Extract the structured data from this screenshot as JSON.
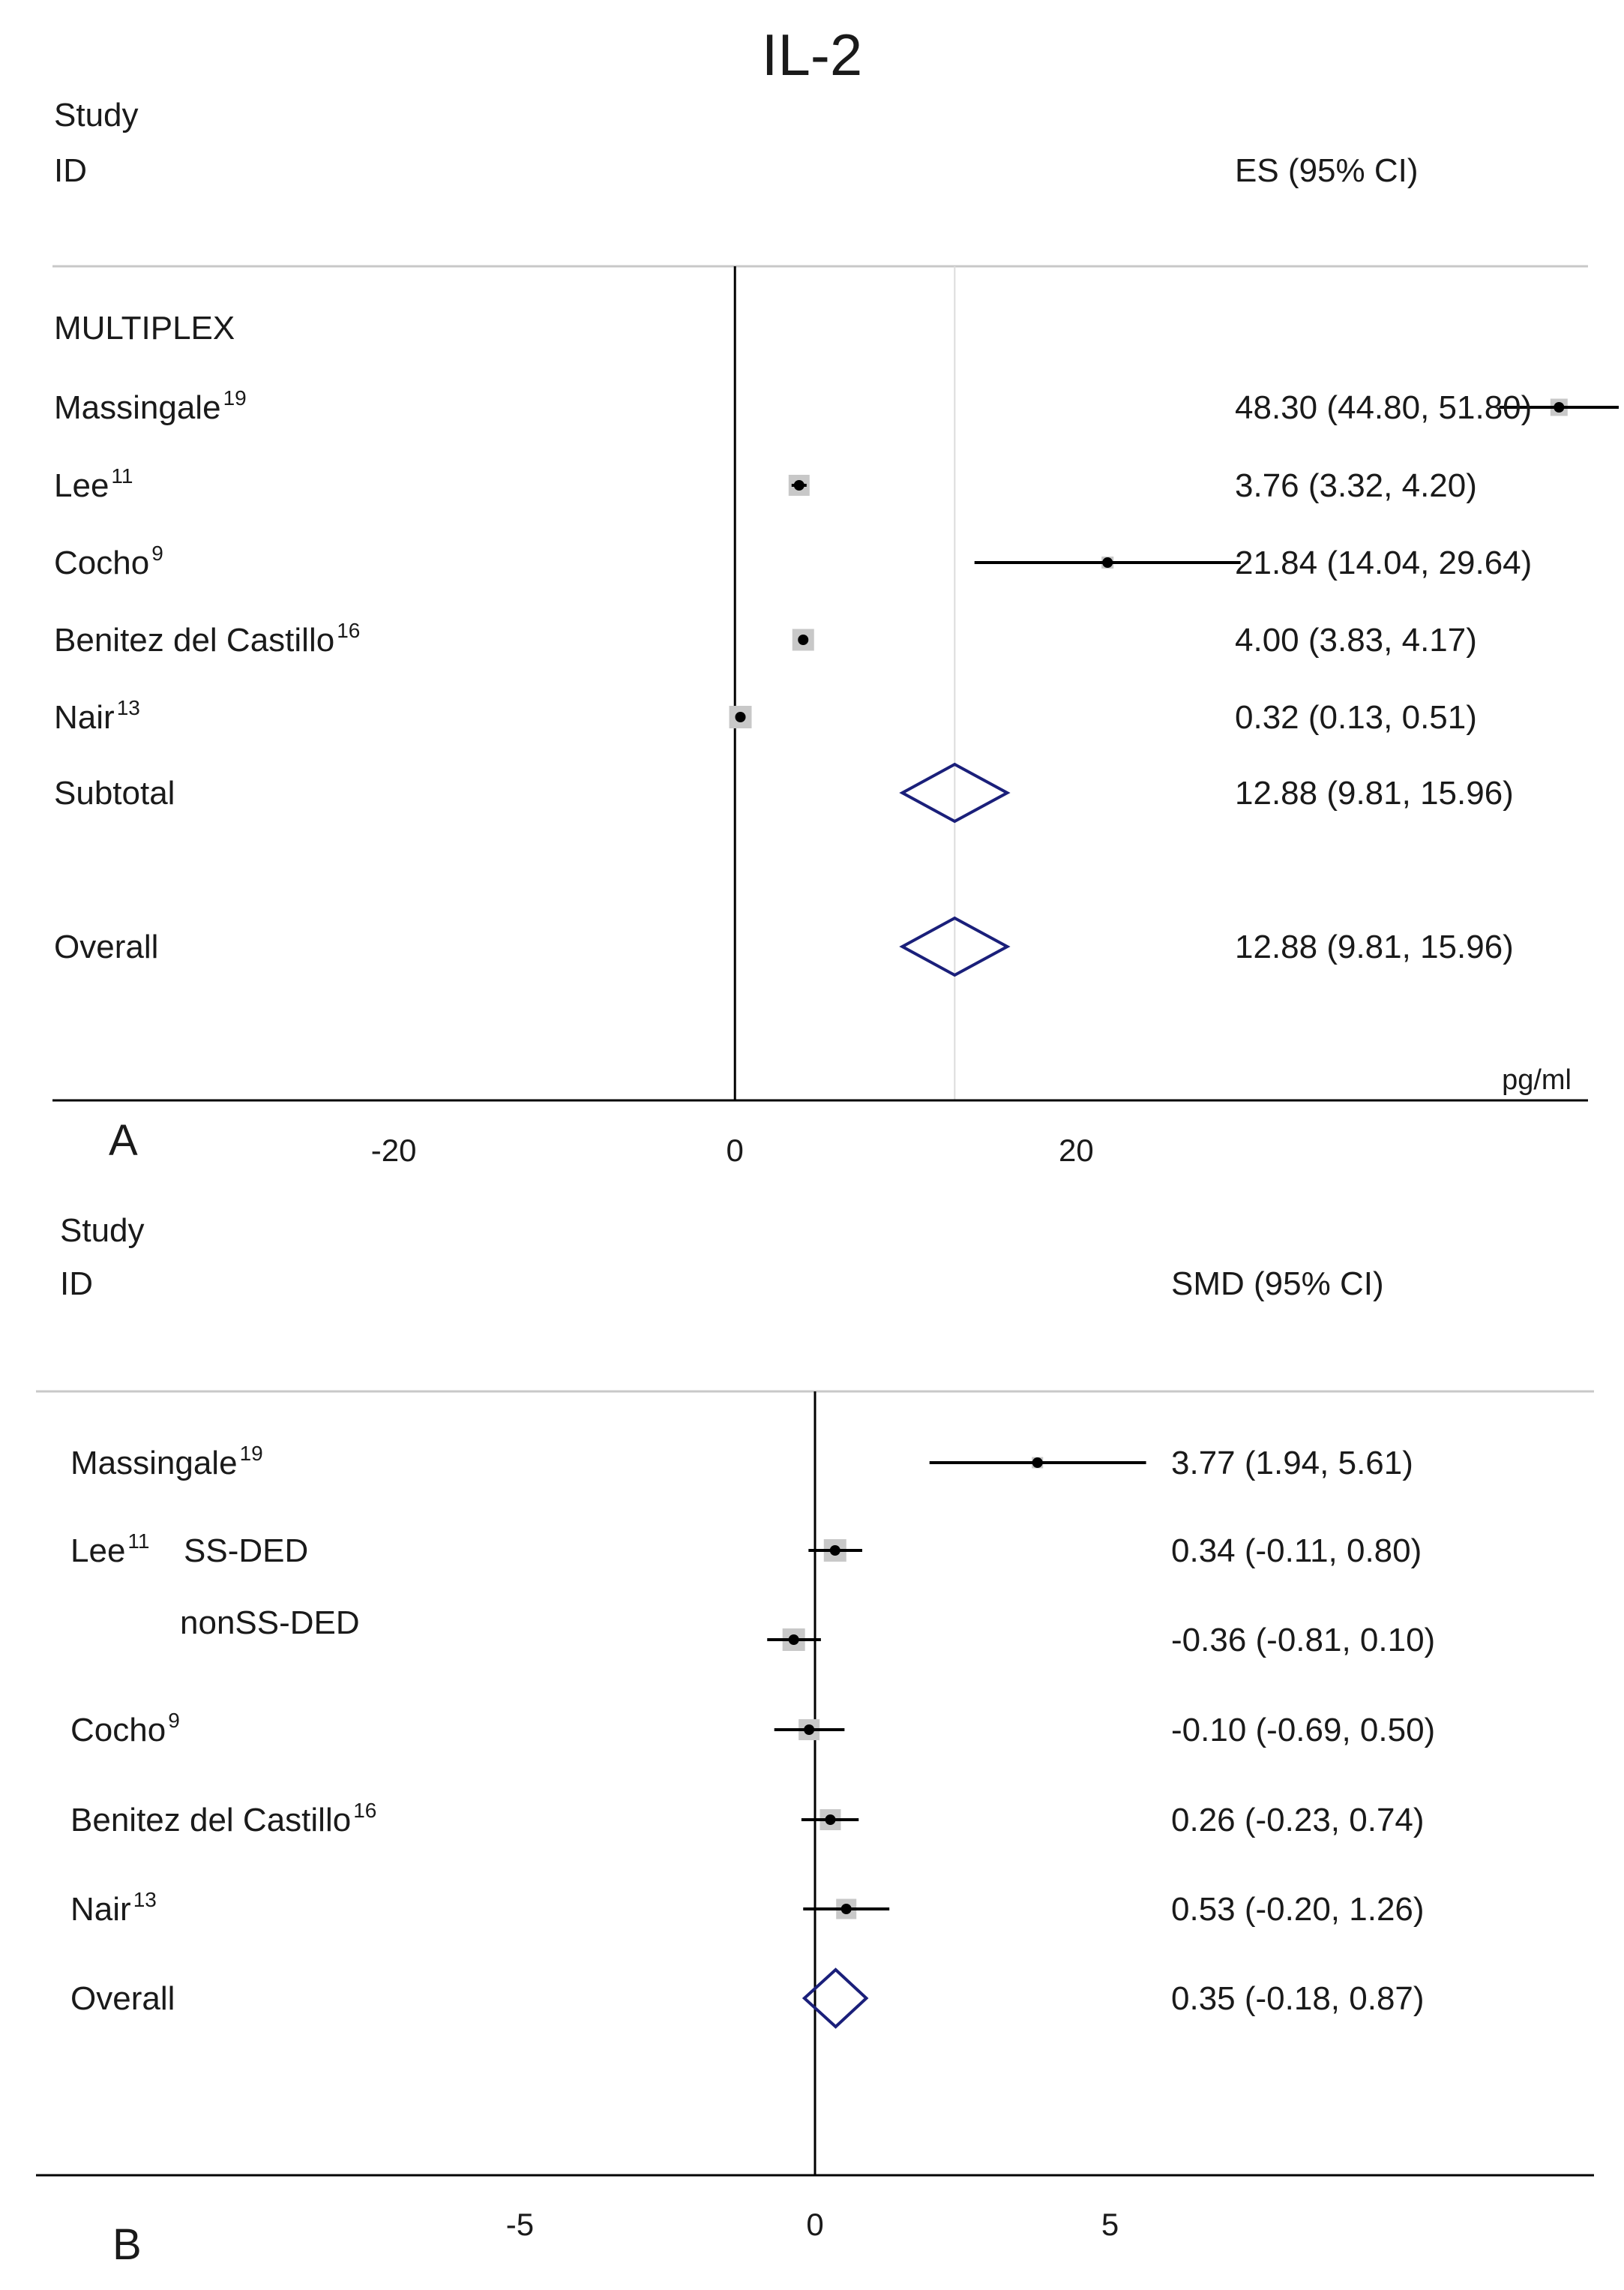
{
  "title": "IL-2",
  "chart_data": [
    {
      "type": "forest",
      "panel_label": "A",
      "header_col1_line1": "Study",
      "header_col1_line2": "ID",
      "header_col2": "ES (95% CI)",
      "axis_unit": "pg/ml",
      "xlim": [
        -40,
        50
      ],
      "xticks": [
        -20,
        0,
        20
      ],
      "xtick_labels": [
        "-20",
        "0",
        "20"
      ],
      "groups": [
        "MULTIPLEX"
      ],
      "rows": [
        {
          "name": "Massingale",
          "sup": "19",
          "es": 48.3,
          "lo": 44.8,
          "hi": 51.8,
          "ci_text": "48.30 (44.80, 51.80)",
          "weight": 0.45
        },
        {
          "name": "Lee",
          "sup": "11",
          "es": 3.76,
          "lo": 3.32,
          "hi": 4.2,
          "ci_text": "3.76 (3.32, 4.20)",
          "weight": 0.7
        },
        {
          "name": "Cocho",
          "sup": "9",
          "es": 21.84,
          "lo": 14.04,
          "hi": 29.64,
          "ci_text": "21.84 (14.04, 29.64)",
          "weight": 0.1
        },
        {
          "name": "Benitez del Castillo",
          "sup": "16",
          "es": 4.0,
          "lo": 3.83,
          "hi": 4.17,
          "ci_text": "4.00 (3.83, 4.17)",
          "weight": 0.75
        },
        {
          "name": "Nair",
          "sup": "13",
          "es": 0.32,
          "lo": 0.13,
          "hi": 0.51,
          "ci_text": "0.32 (0.13, 0.51)",
          "weight": 0.8
        }
      ],
      "subtotal": {
        "name": "Subtotal",
        "es": 12.88,
        "lo": 9.81,
        "hi": 15.96,
        "ci_text": "12.88 (9.81, 15.96)"
      },
      "overall": {
        "name": "Overall",
        "es": 12.88,
        "lo": 9.81,
        "hi": 15.96,
        "ci_text": "12.88 (9.81, 15.96)"
      }
    },
    {
      "type": "forest",
      "panel_label": "B",
      "header_col1_line1": "Study",
      "header_col1_line2": "ID",
      "header_col2": "SMD (95% CI)",
      "xlim": [
        -13.2,
        13.2
      ],
      "xticks": [
        -5,
        0,
        5
      ],
      "xtick_labels": [
        "-5",
        "0",
        "5"
      ],
      "rows": [
        {
          "name": "Massingale",
          "sup": "19",
          "es": 3.77,
          "lo": 1.94,
          "hi": 5.61,
          "ci_text": "3.77 (1.94, 5.61)",
          "weight": 0.05
        },
        {
          "name": "Lee",
          "sup": "11",
          "sub": "SS-DED",
          "es": 0.34,
          "lo": -0.11,
          "hi": 0.8,
          "ci_text": "0.34 (-0.11, 0.80)",
          "weight": 0.8
        },
        {
          "name": "",
          "sub": "nonSS-DED",
          "es": -0.36,
          "lo": -0.81,
          "hi": 0.1,
          "ci_text": "-0.36 (-0.81, 0.10)",
          "weight": 0.8
        },
        {
          "name": "Cocho",
          "sup": "9",
          "es": -0.1,
          "lo": -0.69,
          "hi": 0.5,
          "ci_text": "-0.10 (-0.69, 0.50)",
          "weight": 0.7
        },
        {
          "name": "Benitez del Castillo",
          "sup": "16",
          "es": 0.26,
          "lo": -0.23,
          "hi": 0.74,
          "ci_text": "0.26 (-0.23, 0.74)",
          "weight": 0.7
        },
        {
          "name": "Nair",
          "sup": "13",
          "es": 0.53,
          "lo": -0.2,
          "hi": 1.26,
          "ci_text": "0.53 (-0.20, 1.26)",
          "weight": 0.65
        }
      ],
      "overall": {
        "name": "Overall",
        "es": 0.35,
        "lo": -0.18,
        "hi": 0.87,
        "ci_text": "0.35 (-0.18, 0.87)"
      }
    }
  ]
}
